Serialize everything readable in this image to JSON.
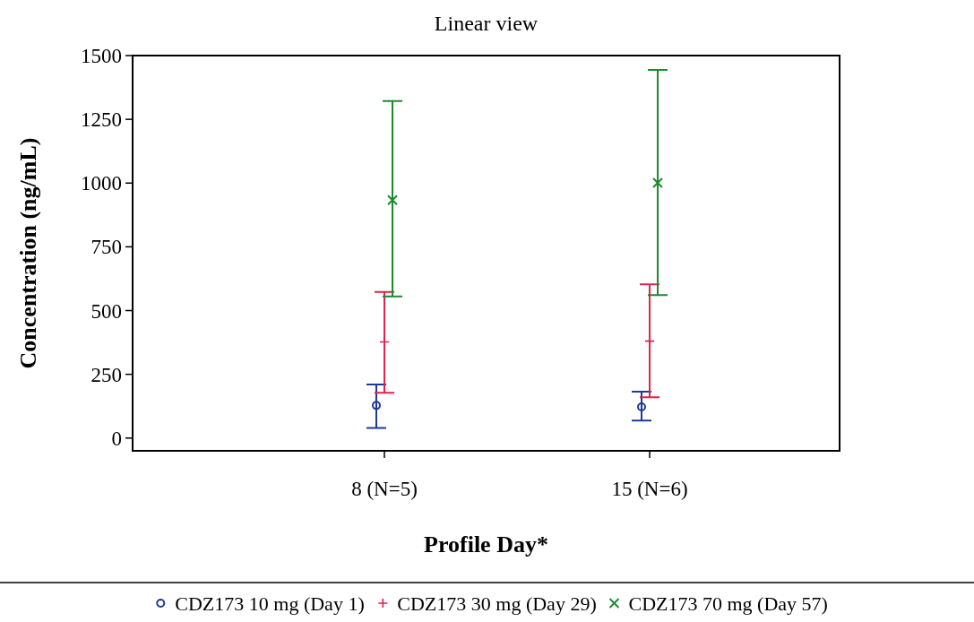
{
  "chart_data": {
    "type": "scatter",
    "title": "Linear view",
    "xlabel": "Profile Day*",
    "ylabel": "Concentration (ng/mL)",
    "categories": [
      "8 (N=5)",
      "15 (N=6)"
    ],
    "series": [
      {
        "name": "CDZ173 10 mg (Day 1)",
        "color": "#1f3a96",
        "marker": "circle",
        "values": [
          128,
          122
        ],
        "errors": [
          [
            40,
            210
          ],
          [
            69,
            182
          ]
        ]
      },
      {
        "name": "CDZ173 30 mg (Day 29)",
        "color": "#e0234e",
        "marker": "cross",
        "values": [
          377,
          380
        ],
        "errors": [
          [
            178,
            573
          ],
          [
            160,
            603
          ]
        ]
      },
      {
        "name": "CDZ173 70 mg (Day 57)",
        "color": "#1e8a2e",
        "marker": "x",
        "values": [
          933,
          1001
        ],
        "errors": [
          [
            555,
            1322
          ],
          [
            561,
            1444
          ]
        ]
      }
    ],
    "ylim": [
      -50,
      1500
    ],
    "yticks": [
      0,
      250,
      500,
      750,
      1000,
      1250,
      1500
    ],
    "legend": "bottom"
  }
}
